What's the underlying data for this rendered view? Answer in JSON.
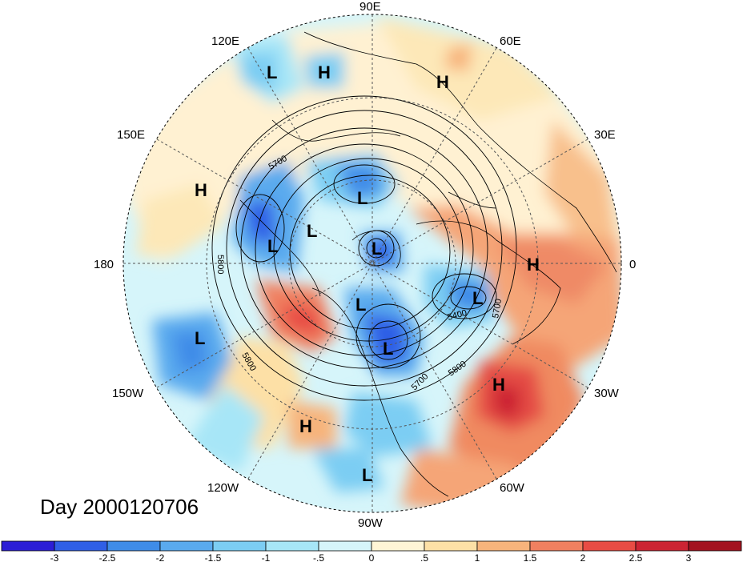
{
  "map": {
    "day_label": "Day 2000120706",
    "longitude_labels": [
      "90E",
      "60E",
      "30E",
      "0",
      "30W",
      "60W",
      "90W",
      "120W",
      "150W",
      "180",
      "150E",
      "120E"
    ],
    "pressure_systems": [
      {
        "type": "L",
        "name": "low-east-siberia-coast"
      },
      {
        "type": "H",
        "name": "high-east-siberia"
      },
      {
        "type": "H",
        "name": "high-central-asia"
      },
      {
        "type": "H",
        "name": "high-west-pacific"
      },
      {
        "type": "L",
        "name": "low-siberia-arctic"
      },
      {
        "type": "L",
        "name": "low-bering"
      },
      {
        "type": "L",
        "name": "low-alaska"
      },
      {
        "type": "L",
        "name": "low-pole"
      },
      {
        "type": "H",
        "name": "high-europe"
      },
      {
        "type": "L",
        "name": "low-hudson-bay"
      },
      {
        "type": "L",
        "name": "low-north-atlantic"
      },
      {
        "type": "L",
        "name": "low-eastern-canada"
      },
      {
        "type": "L",
        "name": "low-north-pacific"
      },
      {
        "type": "H",
        "name": "high-mid-atlantic"
      },
      {
        "type": "H",
        "name": "high-east-pacific"
      },
      {
        "type": "L",
        "name": "low-gulf-of-mexico"
      }
    ],
    "contour_labels": [
      "5700",
      "5800",
      "5800",
      "5400",
      "5700",
      "5700",
      "5800"
    ]
  },
  "colorbar": {
    "labels": [
      "-3",
      "-2.5",
      "-2",
      "-1.5",
      "-1",
      "-.5",
      "0",
      ".5",
      "1",
      "1.5",
      "2",
      "2.5",
      "3"
    ],
    "colors": [
      "#2c1ed6",
      "#2f5fe6",
      "#3f8ce8",
      "#5aaaee",
      "#7ccdf3",
      "#a7e6f7",
      "#d6f5fa",
      "#fff5d6",
      "#fde0a6",
      "#f7b47c",
      "#f08060",
      "#e84c44",
      "#cc2433",
      "#a3131f"
    ]
  }
}
